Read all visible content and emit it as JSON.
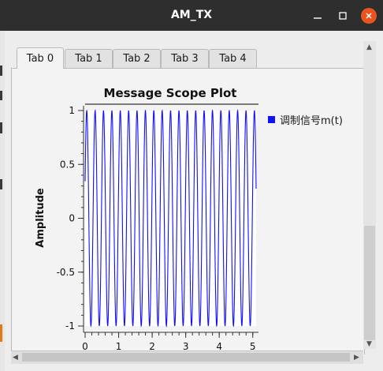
{
  "window": {
    "title": "AM_TX"
  },
  "tabs": [
    {
      "label": "Tab 0",
      "active": true
    },
    {
      "label": "Tab 1",
      "active": false
    },
    {
      "label": "Tab 2",
      "active": false
    },
    {
      "label": "Tab 3",
      "active": false
    },
    {
      "label": "Tab 4",
      "active": false
    }
  ],
  "chart_data": {
    "type": "line",
    "title": "Message Scope Plot",
    "xlabel": "",
    "ylabel": "Amplitude",
    "xlim": [
      0,
      5.1
    ],
    "ylim": [
      -1,
      1
    ],
    "x_ticks": [
      "0",
      "1",
      "2",
      "3",
      "4",
      "5"
    ],
    "y_ticks": [
      "1",
      "0.5",
      "0",
      "-0.5",
      "-1"
    ],
    "grid": false,
    "legend_position": "right",
    "series": [
      {
        "name": "调制信号m(t)",
        "color": "#1010ff",
        "function": "sine",
        "amplitude": 1,
        "frequency": 4,
        "cycles_visible": 20.5
      }
    ]
  },
  "colors": {
    "accent": "#e95420",
    "series": "#1010ff",
    "titlebar": "#2e2e2e"
  }
}
